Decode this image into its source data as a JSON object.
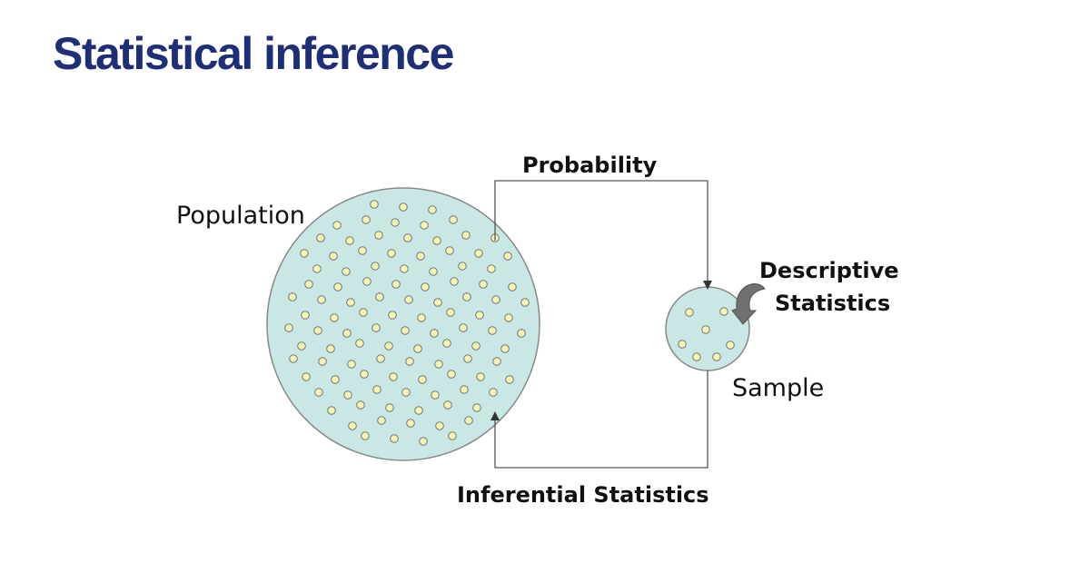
{
  "title": "Statistical inference",
  "diagram": {
    "population_label": "Population",
    "sample_label": "Sample",
    "probability_label": "Probability",
    "inferential_label": "Inferential Statistics",
    "descriptive_line1": "Descriptive",
    "descriptive_line2": "Statistics"
  },
  "colors": {
    "title": "#1e2f78",
    "circle_fill": "#c9e7e4",
    "circle_stroke": "#888888",
    "dot_fill": "#f6f4b0",
    "dot_stroke": "#777777",
    "line": "#555555",
    "curl_arrow": "#707070"
  }
}
